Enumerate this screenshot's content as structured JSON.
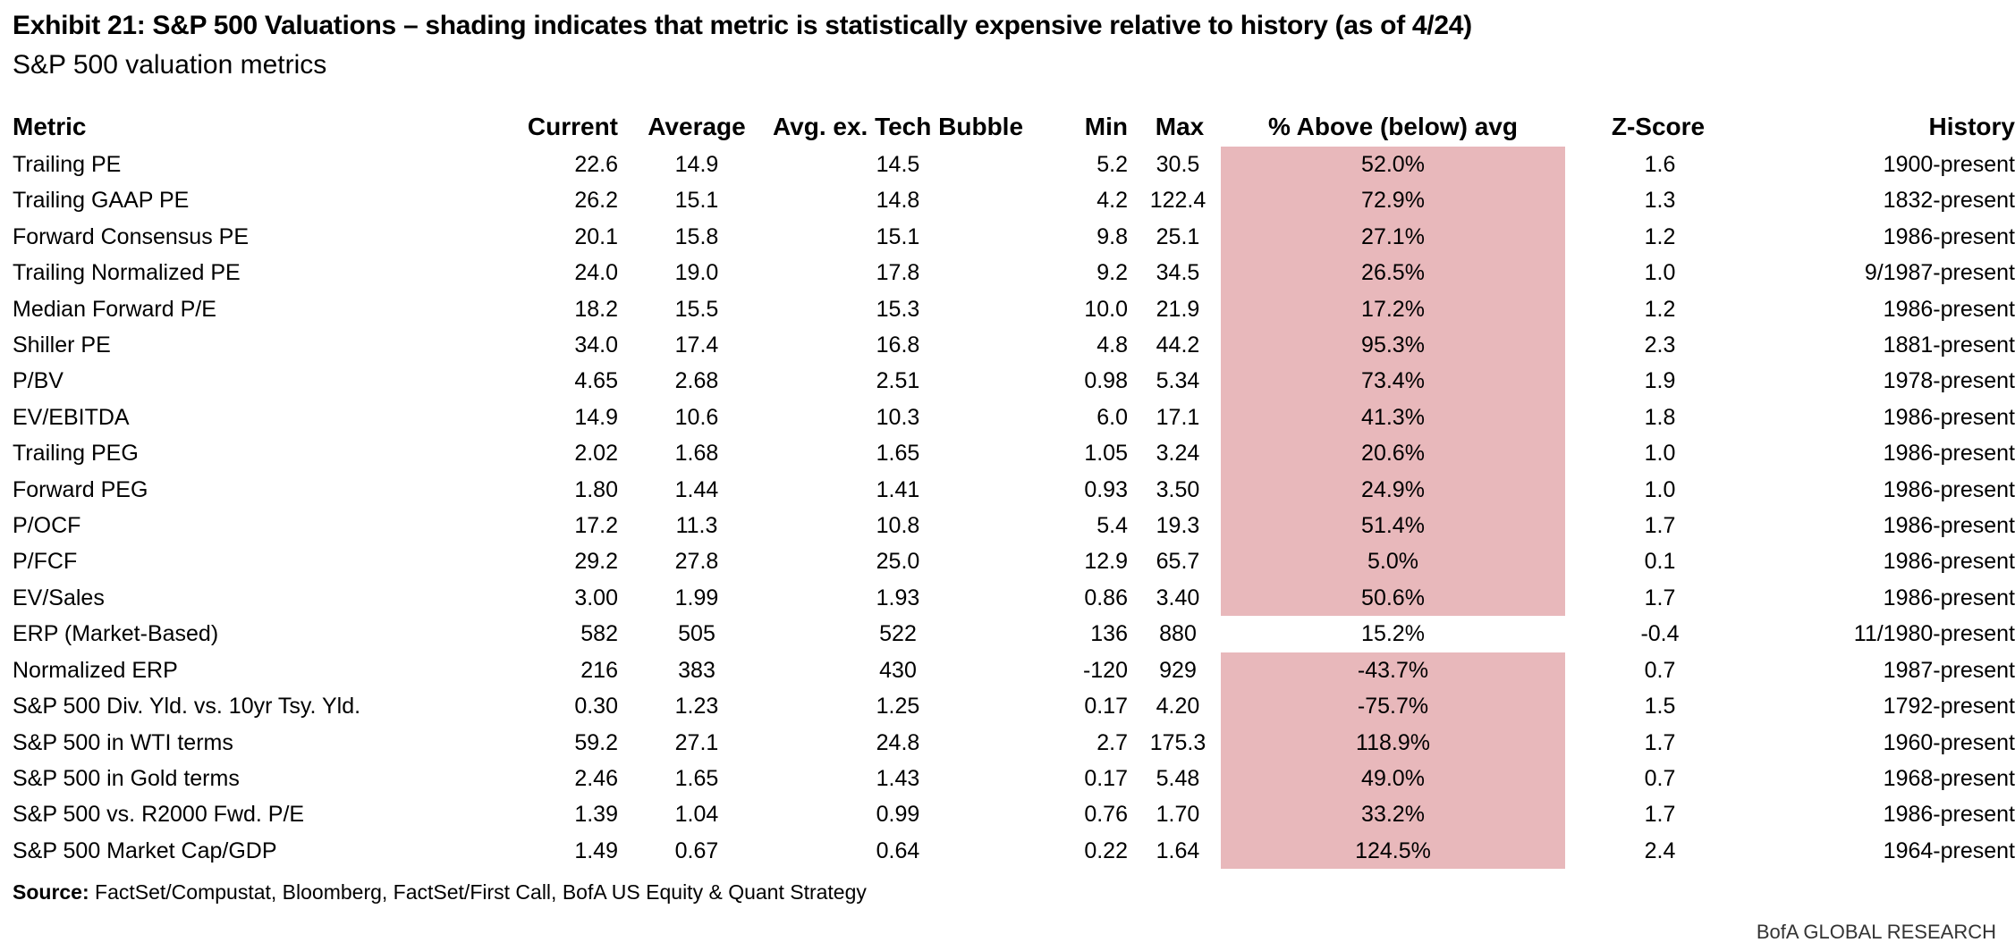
{
  "title": "Exhibit 21: S&P 500 Valuations – shading indicates that metric is statistically expensive relative to history (as of 4/24)",
  "subtitle": "S&P 500 valuation metrics",
  "source_label": "Source:",
  "source_text": "FactSet/Compustat, Bloomberg, FactSet/First Call, BofA US Equity & Quant Strategy",
  "brand": "BofA GLOBAL RESEARCH",
  "colors": {
    "shade": "#e8b8bb"
  },
  "chart_data": {
    "type": "table",
    "columns": [
      "Metric",
      "Current",
      "Average",
      "Avg. ex. Tech Bubble",
      "Min",
      "Max",
      "% Above (below) avg",
      "Z-Score",
      "History"
    ],
    "rows": [
      {
        "metric": "Trailing PE",
        "current": "22.6",
        "average": "14.9",
        "avg_ex": "14.5",
        "min": "5.2",
        "max": "30.5",
        "pct": "52.0%",
        "z": "1.6",
        "history": "1900-present",
        "shaded": true
      },
      {
        "metric": "Trailing GAAP PE",
        "current": "26.2",
        "average": "15.1",
        "avg_ex": "14.8",
        "min": "4.2",
        "max": "122.4",
        "pct": "72.9%",
        "z": "1.3",
        "history": "1832-present",
        "shaded": true
      },
      {
        "metric": "Forward Consensus PE",
        "current": "20.1",
        "average": "15.8",
        "avg_ex": "15.1",
        "min": "9.8",
        "max": "25.1",
        "pct": "27.1%",
        "z": "1.2",
        "history": "1986-present",
        "shaded": true
      },
      {
        "metric": "Trailing Normalized PE",
        "current": "24.0",
        "average": "19.0",
        "avg_ex": "17.8",
        "min": "9.2",
        "max": "34.5",
        "pct": "26.5%",
        "z": "1.0",
        "history": "9/1987-present",
        "shaded": true
      },
      {
        "metric": "Median Forward P/E",
        "current": "18.2",
        "average": "15.5",
        "avg_ex": "15.3",
        "min": "10.0",
        "max": "21.9",
        "pct": "17.2%",
        "z": "1.2",
        "history": "1986-present",
        "shaded": true
      },
      {
        "metric": "Shiller PE",
        "current": "34.0",
        "average": "17.4",
        "avg_ex": "16.8",
        "min": "4.8",
        "max": "44.2",
        "pct": "95.3%",
        "z": "2.3",
        "history": "1881-present",
        "shaded": true
      },
      {
        "metric": "P/BV",
        "current": "4.65",
        "average": "2.68",
        "avg_ex": "2.51",
        "min": "0.98",
        "max": "5.34",
        "pct": "73.4%",
        "z": "1.9",
        "history": "1978-present",
        "shaded": true
      },
      {
        "metric": "EV/EBITDA",
        "current": "14.9",
        "average": "10.6",
        "avg_ex": "10.3",
        "min": "6.0",
        "max": "17.1",
        "pct": "41.3%",
        "z": "1.8",
        "history": "1986-present",
        "shaded": true
      },
      {
        "metric": "Trailing PEG",
        "current": "2.02",
        "average": "1.68",
        "avg_ex": "1.65",
        "min": "1.05",
        "max": "3.24",
        "pct": "20.6%",
        "z": "1.0",
        "history": "1986-present",
        "shaded": true
      },
      {
        "metric": "Forward PEG",
        "current": "1.80",
        "average": "1.44",
        "avg_ex": "1.41",
        "min": "0.93",
        "max": "3.50",
        "pct": "24.9%",
        "z": "1.0",
        "history": "1986-present",
        "shaded": true
      },
      {
        "metric": "P/OCF",
        "current": "17.2",
        "average": "11.3",
        "avg_ex": "10.8",
        "min": "5.4",
        "max": "19.3",
        "pct": "51.4%",
        "z": "1.7",
        "history": "1986-present",
        "shaded": true
      },
      {
        "metric": "P/FCF",
        "current": "29.2",
        "average": "27.8",
        "avg_ex": "25.0",
        "min": "12.9",
        "max": "65.7",
        "pct": "5.0%",
        "z": "0.1",
        "history": "1986-present",
        "shaded": true
      },
      {
        "metric": "EV/Sales",
        "current": "3.00",
        "average": "1.99",
        "avg_ex": "1.93",
        "min": "0.86",
        "max": "3.40",
        "pct": "50.6%",
        "z": "1.7",
        "history": "1986-present",
        "shaded": true
      },
      {
        "metric": "ERP (Market-Based)",
        "current": "582",
        "average": "505",
        "avg_ex": "522",
        "min": "136",
        "max": "880",
        "pct": "15.2%",
        "z": "-0.4",
        "history": "11/1980-present",
        "shaded": false
      },
      {
        "metric": "Normalized ERP",
        "current": "216",
        "average": "383",
        "avg_ex": "430",
        "min": "-120",
        "max": "929",
        "pct": "-43.7%",
        "z": "0.7",
        "history": "1987-present",
        "shaded": true
      },
      {
        "metric": "S&P 500 Div. Yld. vs. 10yr Tsy. Yld.",
        "current": "0.30",
        "average": "1.23",
        "avg_ex": "1.25",
        "min": "0.17",
        "max": "4.20",
        "pct": "-75.7%",
        "z": "1.5",
        "history": "1792-present",
        "shaded": true
      },
      {
        "metric": "S&P 500 in WTI terms",
        "current": "59.2",
        "average": "27.1",
        "avg_ex": "24.8",
        "min": "2.7",
        "max": "175.3",
        "pct": "118.9%",
        "z": "1.7",
        "history": "1960-present",
        "shaded": true
      },
      {
        "metric": "S&P 500 in Gold terms",
        "current": "2.46",
        "average": "1.65",
        "avg_ex": "1.43",
        "min": "0.17",
        "max": "5.48",
        "pct": "49.0%",
        "z": "0.7",
        "history": "1968-present",
        "shaded": true
      },
      {
        "metric": "S&P 500 vs. R2000 Fwd. P/E",
        "current": "1.39",
        "average": "1.04",
        "avg_ex": "0.99",
        "min": "0.76",
        "max": "1.70",
        "pct": "33.2%",
        "z": "1.7",
        "history": "1986-present",
        "shaded": true
      },
      {
        "metric": "S&P 500 Market Cap/GDP",
        "current": "1.49",
        "average": "0.67",
        "avg_ex": "0.64",
        "min": "0.22",
        "max": "1.64",
        "pct": "124.5%",
        "z": "2.4",
        "history": "1964-present",
        "shaded": true
      }
    ]
  }
}
